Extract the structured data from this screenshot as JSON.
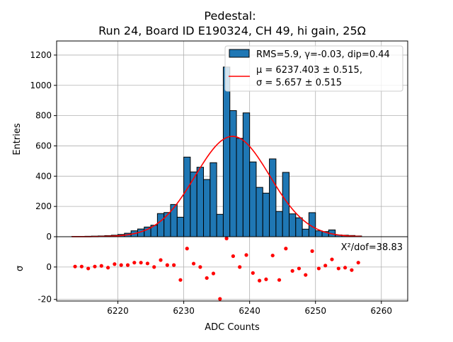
{
  "chart_data": {
    "type": "bar",
    "title_line1": "Pedestal:",
    "title_line2": "Run 24, Board ID E190324, CH 49, hi gain, 25Ω",
    "xlabel": "ADC Counts",
    "ylabel": "Entries",
    "residual_ylabel": "σ",
    "xlim": [
      6210.7,
      6264.0
    ],
    "ylim": [
      0,
      1293
    ],
    "residual_ylim": [
      -21,
      18.7
    ],
    "grid": true,
    "x_ticks": [
      6220,
      6230,
      6240,
      6250,
      6260
    ],
    "y_ticks": [
      0,
      200,
      400,
      600,
      800,
      1000,
      1200
    ],
    "residual_y_ticks": [
      -20,
      0
    ],
    "bin_width": 1,
    "bin_centers": [
      6213.5,
      6214.5,
      6215.5,
      6216.5,
      6217.5,
      6218.5,
      6219.5,
      6220.5,
      6221.5,
      6222.5,
      6223.5,
      6224.5,
      6225.5,
      6226.5,
      6227.5,
      6228.5,
      6229.5,
      6230.5,
      6231.5,
      6232.5,
      6233.5,
      6234.5,
      6235.5,
      6236.5,
      6237.5,
      6238.5,
      6239.5,
      6240.5,
      6241.5,
      6242.5,
      6243.5,
      6244.5,
      6245.5,
      6246.5,
      6247.5,
      6248.5,
      6249.5,
      6250.5,
      6251.5,
      6252.5,
      6253.5,
      6254.5,
      6255.5,
      6256.5
    ],
    "values": [
      2,
      2,
      3,
      4,
      5,
      7,
      10,
      15,
      23,
      39,
      51,
      64,
      76,
      153,
      160,
      213,
      129,
      526,
      428,
      459,
      378,
      489,
      148,
      1121,
      833,
      650,
      818,
      494,
      326,
      288,
      514,
      167,
      425,
      151,
      125,
      50,
      159,
      39,
      34,
      45,
      12,
      10,
      8,
      5
    ],
    "fit": {
      "mu": 6237.403,
      "sigma": 5.657,
      "amplitude": 663,
      "x_range": [
        6213,
        6257
      ]
    },
    "residuals": [
      0.3,
      0.3,
      -0.9,
      0.3,
      0.7,
      -0.4,
      1.8,
      1.2,
      1.2,
      2.7,
      2.7,
      2.2,
      0,
      4.3,
      1.2,
      1.2,
      -8.0,
      11.4,
      2.1,
      0,
      -6.8,
      -4.0,
      -19.7,
      17.6,
      6.7,
      0,
      7.4,
      -3.7,
      -8.4,
      -7.6,
      7.1,
      -8.0,
      11.4,
      -2.4,
      -0.9,
      -4.9,
      9.8,
      -0.9,
      0.9,
      4.7,
      -0.9,
      -0.4,
      -1.9,
      2.7
    ],
    "legend": {
      "placement": "top-right",
      "hist_label": "RMS=5.9, γ=-0.03, dip=0.44",
      "fit_label_line1": "μ = 6237.403 ± 0.515,",
      "fit_label_line2": "σ = 5.657 ± 0.515"
    },
    "annotation": "X²/dof=38.83",
    "colors": {
      "bar": "#1f77b4",
      "fit": "#ff0000",
      "residual": "#ff0000",
      "grid": "#b0b0b0"
    }
  }
}
